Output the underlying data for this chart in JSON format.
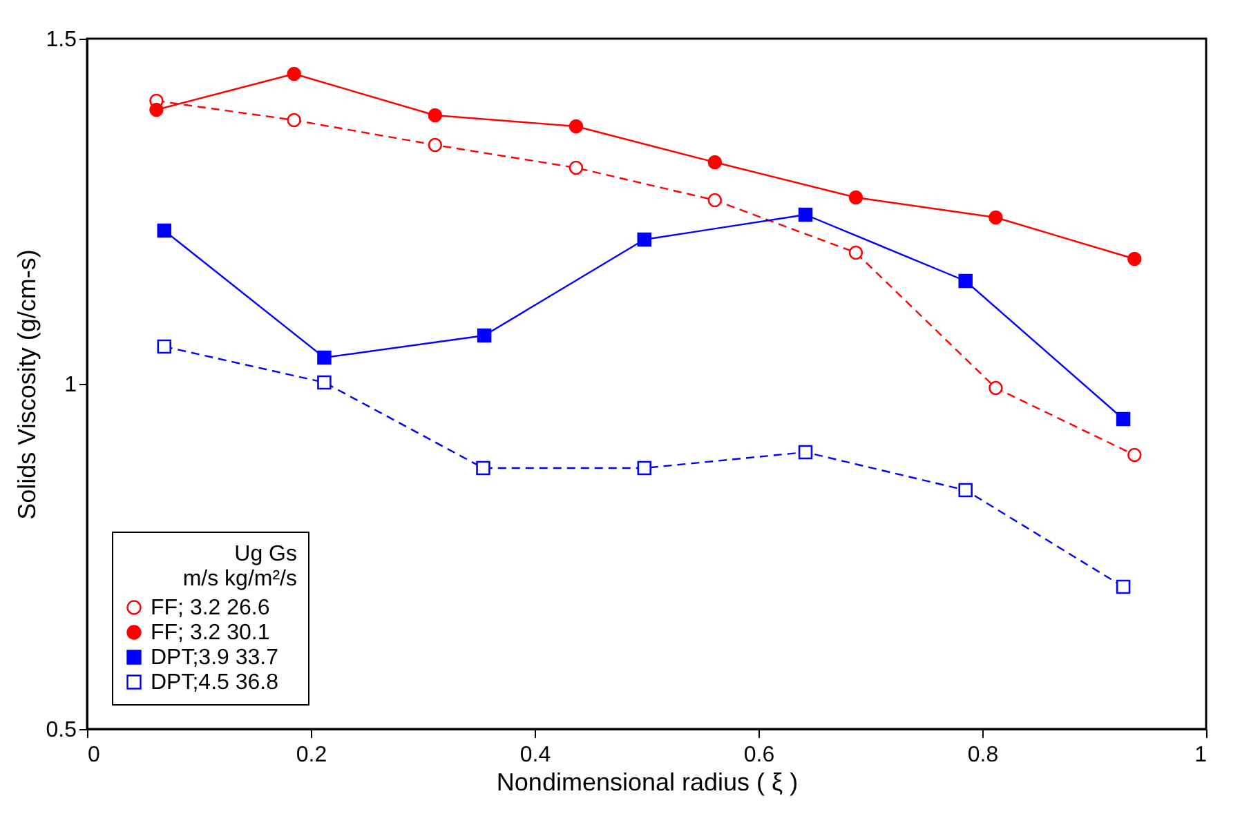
{
  "chart_data": {
    "type": "line",
    "xlabel": "Nondimensional radius ( ξ )",
    "ylabel": "Solids Viscosity (g/cm-s)",
    "legend_title": [
      "Ug       Gs",
      "m/s   kg/m²/s"
    ],
    "xlim": [
      0,
      1
    ],
    "xticks": [
      0,
      0.2,
      0.4,
      0.6,
      0.8,
      1
    ],
    "ylim": [
      0.5,
      1.5
    ],
    "yticks": [
      0.5,
      1,
      1.5
    ],
    "grid": false,
    "legend": "bottom left",
    "series": [
      {
        "name": "FF;  3.2    26.6",
        "color": "#ff0000",
        "marker": "circle",
        "line_style": "dashed",
        "x": [
          0.062,
          0.185,
          0.311,
          0.437,
          0.561,
          0.687,
          0.812,
          0.936
        ],
        "values": [
          1.41,
          1.382,
          1.346,
          1.313,
          1.266,
          1.19,
          0.994,
          0.897
        ]
      },
      {
        "name": "FF;  3.2    30.1",
        "color": "#ff0000",
        "marker": "circle",
        "line_style": "solid",
        "x": [
          0.062,
          0.185,
          0.311,
          0.437,
          0.561,
          0.687,
          0.812,
          0.936
        ],
        "values": [
          1.397,
          1.449,
          1.389,
          1.373,
          1.321,
          1.27,
          1.241,
          1.181
        ]
      },
      {
        "name": "DPT;3.9    33.7",
        "color": "#0000ff",
        "marker": "square",
        "line_style": "solid",
        "x": [
          0.069,
          0.212,
          0.355,
          0.498,
          0.642,
          0.785,
          0.926
        ],
        "values": [
          1.222,
          1.038,
          1.07,
          1.209,
          1.245,
          1.149,
          0.949
        ]
      },
      {
        "name": "DPT;4.5    36.8",
        "color": "#0000ff",
        "marker": "square",
        "line_style": "dashed",
        "x": [
          0.069,
          0.212,
          0.354,
          0.498,
          0.642,
          0.785,
          0.926
        ],
        "values": [
          1.054,
          1.002,
          0.878,
          0.878,
          0.901,
          0.846,
          0.706
        ]
      }
    ]
  }
}
